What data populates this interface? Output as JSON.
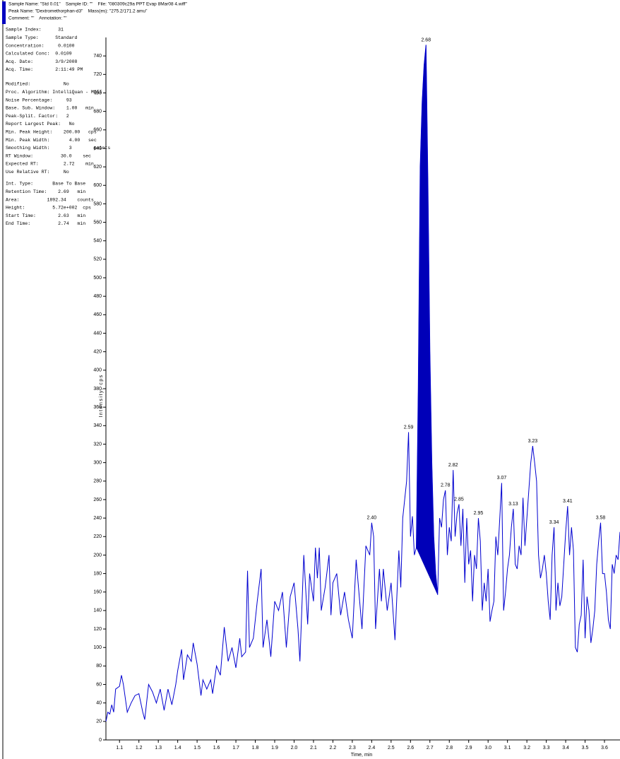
{
  "header": {
    "lines": [
      "Sample Name: \"Std 0.01\"    Sample ID: \"\"    File: \"080309c29a PPT Evap 8Mar08 4.wiff\"",
      "Peak Name: \"Dextromethorphan-d3\"    Mass(es): \"275.2/171.2 amu\"",
      "Comment: \"\"    Annotation: \"\""
    ]
  },
  "info": [
    [
      "Sample Index:      31",
      "Sample Type:      Standard",
      "Concentration:     0.0100",
      "Calculated Conc:  0.0109",
      "Acq. Date:        3/9/2008",
      "Acq. Time:        2:11:49 PM"
    ],
    [
      "Modified:            No",
      "Proc. Algorithm: IntelliQuan - MQII",
      "Noise Percentage:     93",
      "Base. Sub. Window:    1.00   min",
      "Peak-Split. Factor:   2",
      "Report Largest Peak:   No",
      "Min. Peak Height:    200.00   cps",
      "Min. Peak Width:       4.00   sec",
      "Smoothing Width:       3        points",
      "RT Window:          30.0    sec",
      "Expected RT:         2.72    min",
      "Use Relative RT:     No"
    ],
    [
      "Int. Type:       Base To Base",
      "Retention Time:    2.69   min",
      "Area:          1892.34    counts",
      "Height:          5.72e+002  cps",
      "Start Time:        2.63   min",
      "End Time:          2.74   min"
    ]
  ],
  "chart_data": {
    "type": "line",
    "x_label": "Time, min",
    "y_label": "Intensity, cps",
    "xlim": [
      1.03,
      3.68
    ],
    "ylim": [
      0,
      760
    ],
    "xticks": [
      1.1,
      1.2,
      1.3,
      1.4,
      1.5,
      1.6,
      1.7,
      1.8,
      1.9,
      {
        "value": 2,
        "label": "2.0"
      },
      2.1,
      2.2,
      2.3,
      2.4,
      2.5,
      2.6,
      2.7,
      2.8,
      2.9,
      {
        "value": 3,
        "label": "3.0"
      },
      3.1,
      3.2,
      3.3,
      3.4,
      3.5,
      3.6
    ],
    "yticks": [
      0,
      20,
      40,
      60,
      80,
      100,
      120,
      140,
      160,
      180,
      200,
      220,
      240,
      260,
      280,
      300,
      320,
      340,
      360,
      380,
      400,
      420,
      440,
      460,
      480,
      500,
      520,
      540,
      560,
      580,
      600,
      620,
      640,
      660,
      680,
      700,
      720,
      740
    ],
    "color": "#0000d0",
    "fill_color": "#0000b8",
    "integration": {
      "start": 2.63,
      "end": 2.74
    },
    "x": [
      1.03,
      1.04,
      1.05,
      1.06,
      1.07,
      1.08,
      1.1,
      1.11,
      1.12,
      1.13,
      1.14,
      1.16,
      1.18,
      1.2,
      1.22,
      1.23,
      1.25,
      1.27,
      1.29,
      1.31,
      1.33,
      1.35,
      1.37,
      1.39,
      1.4,
      1.42,
      1.43,
      1.45,
      1.47,
      1.48,
      1.5,
      1.52,
      1.53,
      1.55,
      1.57,
      1.58,
      1.6,
      1.62,
      1.64,
      1.66,
      1.68,
      1.7,
      1.72,
      1.73,
      1.75,
      1.76,
      1.77,
      1.79,
      1.81,
      1.83,
      1.84,
      1.86,
      1.88,
      1.9,
      1.92,
      1.94,
      1.96,
      1.98,
      2.0,
      2.02,
      2.03,
      2.05,
      2.07,
      2.08,
      2.1,
      2.11,
      2.12,
      2.13,
      2.14,
      2.16,
      2.18,
      2.19,
      2.2,
      2.22,
      2.24,
      2.26,
      2.28,
      2.3,
      2.32,
      2.33,
      2.35,
      2.37,
      2.39,
      2.4,
      2.41,
      2.42,
      2.44,
      2.45,
      2.46,
      2.48,
      2.5,
      2.52,
      2.54,
      2.55,
      2.56,
      2.58,
      2.59,
      2.6,
      2.61,
      2.62,
      2.63,
      2.64,
      2.65,
      2.66,
      2.67,
      2.68,
      2.69,
      2.7,
      2.71,
      2.72,
      2.73,
      2.74,
      2.75,
      2.76,
      2.77,
      2.78,
      2.79,
      2.8,
      2.81,
      2.82,
      2.83,
      2.84,
      2.85,
      2.86,
      2.87,
      2.88,
      2.89,
      2.9,
      2.91,
      2.92,
      2.93,
      2.94,
      2.95,
      2.96,
      2.97,
      2.98,
      2.99,
      3.0,
      3.01,
      3.02,
      3.03,
      3.04,
      3.05,
      3.07,
      3.08,
      3.09,
      3.1,
      3.11,
      3.12,
      3.13,
      3.14,
      3.15,
      3.16,
      3.17,
      3.18,
      3.19,
      3.2,
      3.22,
      3.23,
      3.24,
      3.25,
      3.26,
      3.27,
      3.28,
      3.29,
      3.3,
      3.31,
      3.32,
      3.33,
      3.34,
      3.35,
      3.36,
      3.37,
      3.38,
      3.39,
      3.4,
      3.41,
      3.42,
      3.43,
      3.44,
      3.45,
      3.46,
      3.47,
      3.48,
      3.49,
      3.5,
      3.51,
      3.52,
      3.53,
      3.54,
      3.55,
      3.56,
      3.57,
      3.58,
      3.59,
      3.6,
      3.61,
      3.62,
      3.63,
      3.64,
      3.65,
      3.66,
      3.67,
      3.68
    ],
    "values": [
      20,
      30,
      28,
      38,
      30,
      55,
      58,
      70,
      60,
      45,
      30,
      40,
      48,
      50,
      30,
      22,
      60,
      52,
      40,
      55,
      32,
      55,
      38,
      60,
      75,
      98,
      65,
      92,
      85,
      105,
      82,
      48,
      65,
      55,
      65,
      50,
      80,
      70,
      122,
      85,
      100,
      78,
      110,
      90,
      95,
      183,
      100,
      110,
      150,
      185,
      100,
      130,
      90,
      150,
      140,
      160,
      100,
      155,
      170,
      120,
      85,
      200,
      125,
      180,
      150,
      208,
      175,
      208,
      140,
      165,
      200,
      135,
      170,
      180,
      135,
      160,
      130,
      110,
      195,
      170,
      120,
      210,
      200,
      235,
      220,
      120,
      185,
      150,
      185,
      140,
      170,
      108,
      205,
      165,
      240,
      280,
      333,
      220,
      242,
      200,
      208,
      380,
      620,
      690,
      730,
      752,
      600,
      420,
      300,
      220,
      180,
      157,
      240,
      230,
      260,
      270,
      200,
      230,
      215,
      292,
      220,
      245,
      255,
      210,
      250,
      170,
      240,
      190,
      205,
      150,
      200,
      185,
      240,
      215,
      140,
      170,
      150,
      185,
      128,
      140,
      150,
      220,
      200,
      278,
      140,
      160,
      185,
      200,
      230,
      250,
      190,
      185,
      210,
      200,
      262,
      210,
      240,
      300,
      318,
      300,
      280,
      200,
      175,
      185,
      200,
      180,
      150,
      130,
      200,
      230,
      140,
      170,
      145,
      155,
      190,
      225,
      253,
      200,
      230,
      205,
      100,
      95,
      125,
      135,
      195,
      110,
      155,
      140,
      105,
      120,
      140,
      190,
      215,
      235,
      180,
      180,
      160,
      130,
      120,
      190,
      180,
      200,
      195,
      225
    ],
    "peaks": {
      "x": [
        2.4,
        2.59,
        2.68,
        2.78,
        2.82,
        2.85,
        2.95,
        3.07,
        3.13,
        3.23,
        3.34,
        3.41,
        3.58
      ],
      "labels": [
        "2.40",
        "2.59",
        "2.68",
        "2.78",
        "2.82",
        "2.85",
        "2.95",
        "3.07",
        "3.13",
        "3.23",
        "3.34",
        "3.41",
        "3.58"
      ]
    }
  }
}
